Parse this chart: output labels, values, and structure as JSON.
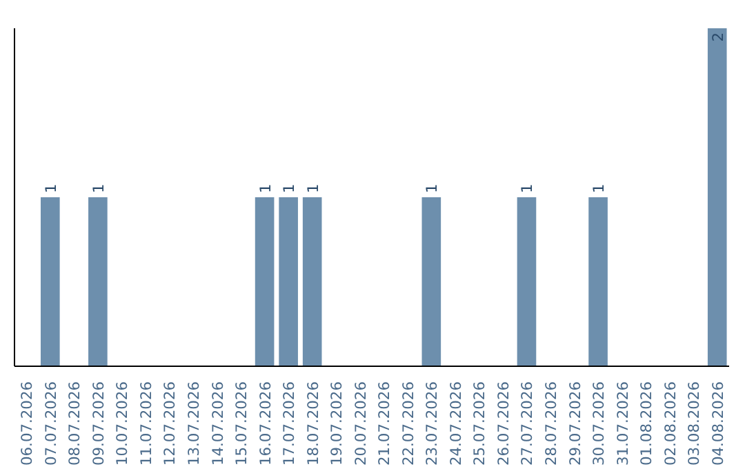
{
  "chart_data": {
    "type": "bar",
    "categories": [
      "06.07.2026",
      "07.07.2026",
      "08.07.2026",
      "09.07.2026",
      "10.07.2026",
      "11.07.2026",
      "12.07.2026",
      "13.07.2026",
      "14.07.2026",
      "15.07.2026",
      "16.07.2026",
      "17.07.2026",
      "18.07.2026",
      "19.07.2026",
      "20.07.2026",
      "21.07.2026",
      "22.07.2026",
      "23.07.2026",
      "24.07.2026",
      "25.07.2026",
      "26.07.2026",
      "27.07.2026",
      "28.07.2026",
      "29.07.2026",
      "30.07.2026",
      "31.07.2026",
      "01.08.2026",
      "02.08.2026",
      "03.08.2026",
      "04.08.2026"
    ],
    "values": [
      0,
      1,
      0,
      1,
      0,
      0,
      0,
      0,
      0,
      0,
      1,
      1,
      1,
      0,
      0,
      0,
      0,
      1,
      0,
      0,
      0,
      1,
      0,
      0,
      1,
      0,
      0,
      0,
      0,
      2
    ],
    "value_labels": [
      null,
      "1",
      null,
      "1",
      null,
      null,
      null,
      null,
      null,
      null,
      "1",
      "1",
      "1",
      null,
      null,
      null,
      null,
      "1",
      null,
      null,
      null,
      "1",
      null,
      null,
      "1",
      null,
      null,
      null,
      null,
      "2"
    ],
    "color": "#6d8fad",
    "tick_labels": "x",
    "grid": false
  }
}
